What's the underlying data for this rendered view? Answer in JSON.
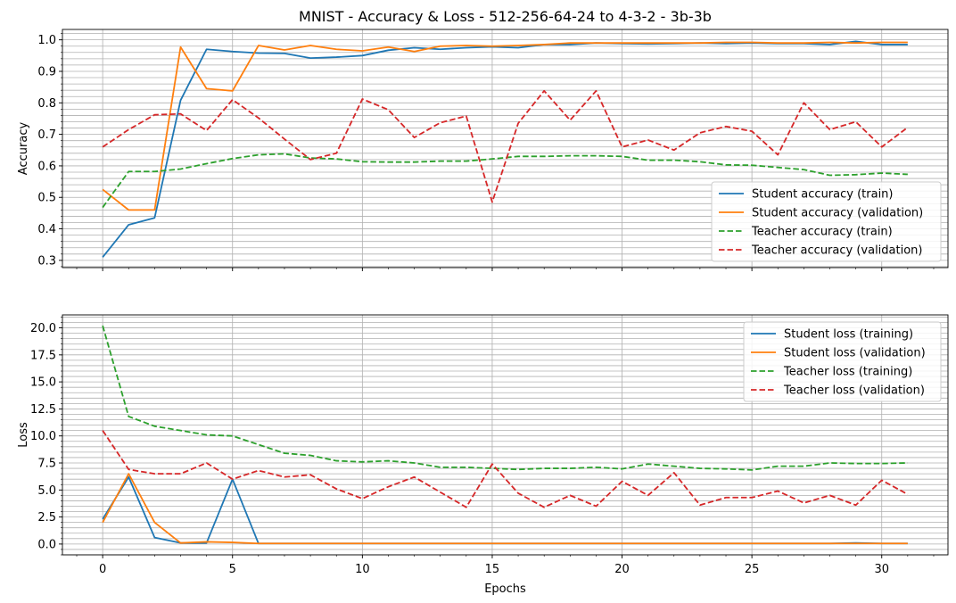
{
  "chart_data": [
    {
      "type": "line",
      "title": "MNIST - Accuracy & Loss - 512-256-64-24 to 4-3-2 - 3b-3b",
      "xlabel": "",
      "ylabel": "Accuracy",
      "xlim": [
        -1.55,
        32.55
      ],
      "ylim": [
        0.277,
        1.033
      ],
      "xticks": [
        "0",
        "5",
        "10",
        "15",
        "20",
        "25",
        "30"
      ],
      "yticks": [
        "0.3",
        "0.4",
        "0.5",
        "0.6",
        "0.7",
        "0.8",
        "0.9",
        "1.0"
      ],
      "grid": true,
      "legend_position": "lower-right",
      "x": [
        0,
        1,
        2,
        3,
        4,
        5,
        6,
        7,
        8,
        9,
        10,
        11,
        12,
        13,
        14,
        15,
        16,
        17,
        18,
        19,
        20,
        21,
        22,
        23,
        24,
        25,
        26,
        27,
        28,
        29,
        30,
        31
      ],
      "series": [
        {
          "name": "Student accuracy (train)",
          "color": "#1f77b4",
          "dash": "solid",
          "values": [
            0.31,
            0.413,
            0.435,
            0.808,
            0.97,
            0.963,
            0.958,
            0.957,
            0.942,
            0.945,
            0.95,
            0.967,
            0.975,
            0.97,
            0.975,
            0.978,
            0.975,
            0.985,
            0.985,
            0.99,
            0.988,
            0.987,
            0.988,
            0.99,
            0.988,
            0.99,
            0.988,
            0.988,
            0.985,
            0.995,
            0.985,
            0.985
          ]
        },
        {
          "name": "Student accuracy (validation)",
          "color": "#ff7f0e",
          "dash": "solid",
          "values": [
            0.525,
            0.46,
            0.46,
            0.977,
            0.845,
            0.838,
            0.982,
            0.968,
            0.982,
            0.97,
            0.965,
            0.977,
            0.963,
            0.98,
            0.982,
            0.98,
            0.982,
            0.985,
            0.99,
            0.99,
            0.99,
            0.99,
            0.99,
            0.99,
            0.992,
            0.992,
            0.99,
            0.99,
            0.992,
            0.99,
            0.992,
            0.992
          ]
        },
        {
          "name": "Teacher accuracy (train)",
          "color": "#2ca02c",
          "dash": "dashed",
          "values": [
            0.468,
            0.582,
            0.582,
            0.59,
            0.607,
            0.623,
            0.635,
            0.638,
            0.625,
            0.622,
            0.613,
            0.612,
            0.612,
            0.615,
            0.615,
            0.622,
            0.63,
            0.63,
            0.632,
            0.632,
            0.63,
            0.618,
            0.618,
            0.613,
            0.603,
            0.602,
            0.595,
            0.588,
            0.57,
            0.572,
            0.577,
            0.573
          ]
        },
        {
          "name": "Teacher accuracy (validation)",
          "color": "#d62728",
          "dash": "dashed",
          "values": [
            0.66,
            0.715,
            0.762,
            0.765,
            0.712,
            0.81,
            0.752,
            0.685,
            0.62,
            0.64,
            0.812,
            0.778,
            0.69,
            0.737,
            0.758,
            0.485,
            0.735,
            0.838,
            0.745,
            0.838,
            0.66,
            0.682,
            0.65,
            0.705,
            0.725,
            0.71,
            0.635,
            0.8,
            0.715,
            0.74,
            0.66,
            0.722
          ]
        }
      ]
    },
    {
      "type": "line",
      "title": "",
      "xlabel": "Epochs",
      "ylabel": "Loss",
      "xlim": [
        -1.55,
        32.55
      ],
      "ylim": [
        -1.0,
        21.2
      ],
      "xticks": [
        "0",
        "5",
        "10",
        "15",
        "20",
        "25",
        "30"
      ],
      "yticks": [
        "0.0",
        "2.5",
        "5.0",
        "7.5",
        "10.0",
        "12.5",
        "15.0",
        "17.5",
        "20.0"
      ],
      "grid": true,
      "legend_position": "upper-right",
      "x": [
        0,
        1,
        2,
        3,
        4,
        5,
        6,
        7,
        8,
        9,
        10,
        11,
        12,
        13,
        14,
        15,
        16,
        17,
        18,
        19,
        20,
        21,
        22,
        23,
        24,
        25,
        26,
        27,
        28,
        29,
        30,
        31
      ],
      "series": [
        {
          "name": "Student loss (training)",
          "color": "#1f77b4",
          "dash": "solid",
          "values": [
            2.3,
            6.2,
            0.6,
            0.1,
            0.1,
            6.0,
            0.05,
            0.05,
            0.05,
            0.05,
            0.05,
            0.05,
            0.05,
            0.05,
            0.05,
            0.05,
            0.05,
            0.05,
            0.05,
            0.05,
            0.05,
            0.05,
            0.05,
            0.05,
            0.05,
            0.05,
            0.05,
            0.05,
            0.05,
            0.1,
            0.05,
            0.05
          ]
        },
        {
          "name": "Student loss (validation)",
          "color": "#ff7f0e",
          "dash": "solid",
          "values": [
            2.0,
            6.5,
            2.0,
            0.1,
            0.2,
            0.15,
            0.05,
            0.05,
            0.05,
            0.05,
            0.05,
            0.05,
            0.05,
            0.05,
            0.05,
            0.05,
            0.05,
            0.05,
            0.05,
            0.05,
            0.05,
            0.05,
            0.05,
            0.05,
            0.05,
            0.05,
            0.05,
            0.05,
            0.05,
            0.05,
            0.05,
            0.05
          ]
        },
        {
          "name": "Teacher loss (training)",
          "color": "#2ca02c",
          "dash": "dashed",
          "values": [
            20.2,
            11.8,
            10.9,
            10.5,
            10.1,
            10.0,
            9.2,
            8.4,
            8.2,
            7.7,
            7.6,
            7.7,
            7.5,
            7.1,
            7.1,
            7.0,
            6.9,
            7.0,
            7.0,
            7.1,
            6.95,
            7.4,
            7.2,
            7.0,
            6.95,
            6.85,
            7.2,
            7.2,
            7.5,
            7.45,
            7.45,
            7.5
          ]
        },
        {
          "name": "Teacher loss (validation)",
          "color": "#d62728",
          "dash": "dashed",
          "values": [
            10.5,
            6.9,
            6.5,
            6.5,
            7.5,
            6.0,
            6.8,
            6.2,
            6.4,
            5.1,
            4.2,
            5.3,
            6.2,
            4.8,
            3.4,
            7.4,
            4.7,
            3.4,
            4.5,
            3.5,
            5.8,
            4.5,
            6.6,
            3.6,
            4.3,
            4.3,
            4.9,
            3.8,
            4.5,
            3.6,
            5.9,
            4.6
          ]
        }
      ]
    }
  ]
}
